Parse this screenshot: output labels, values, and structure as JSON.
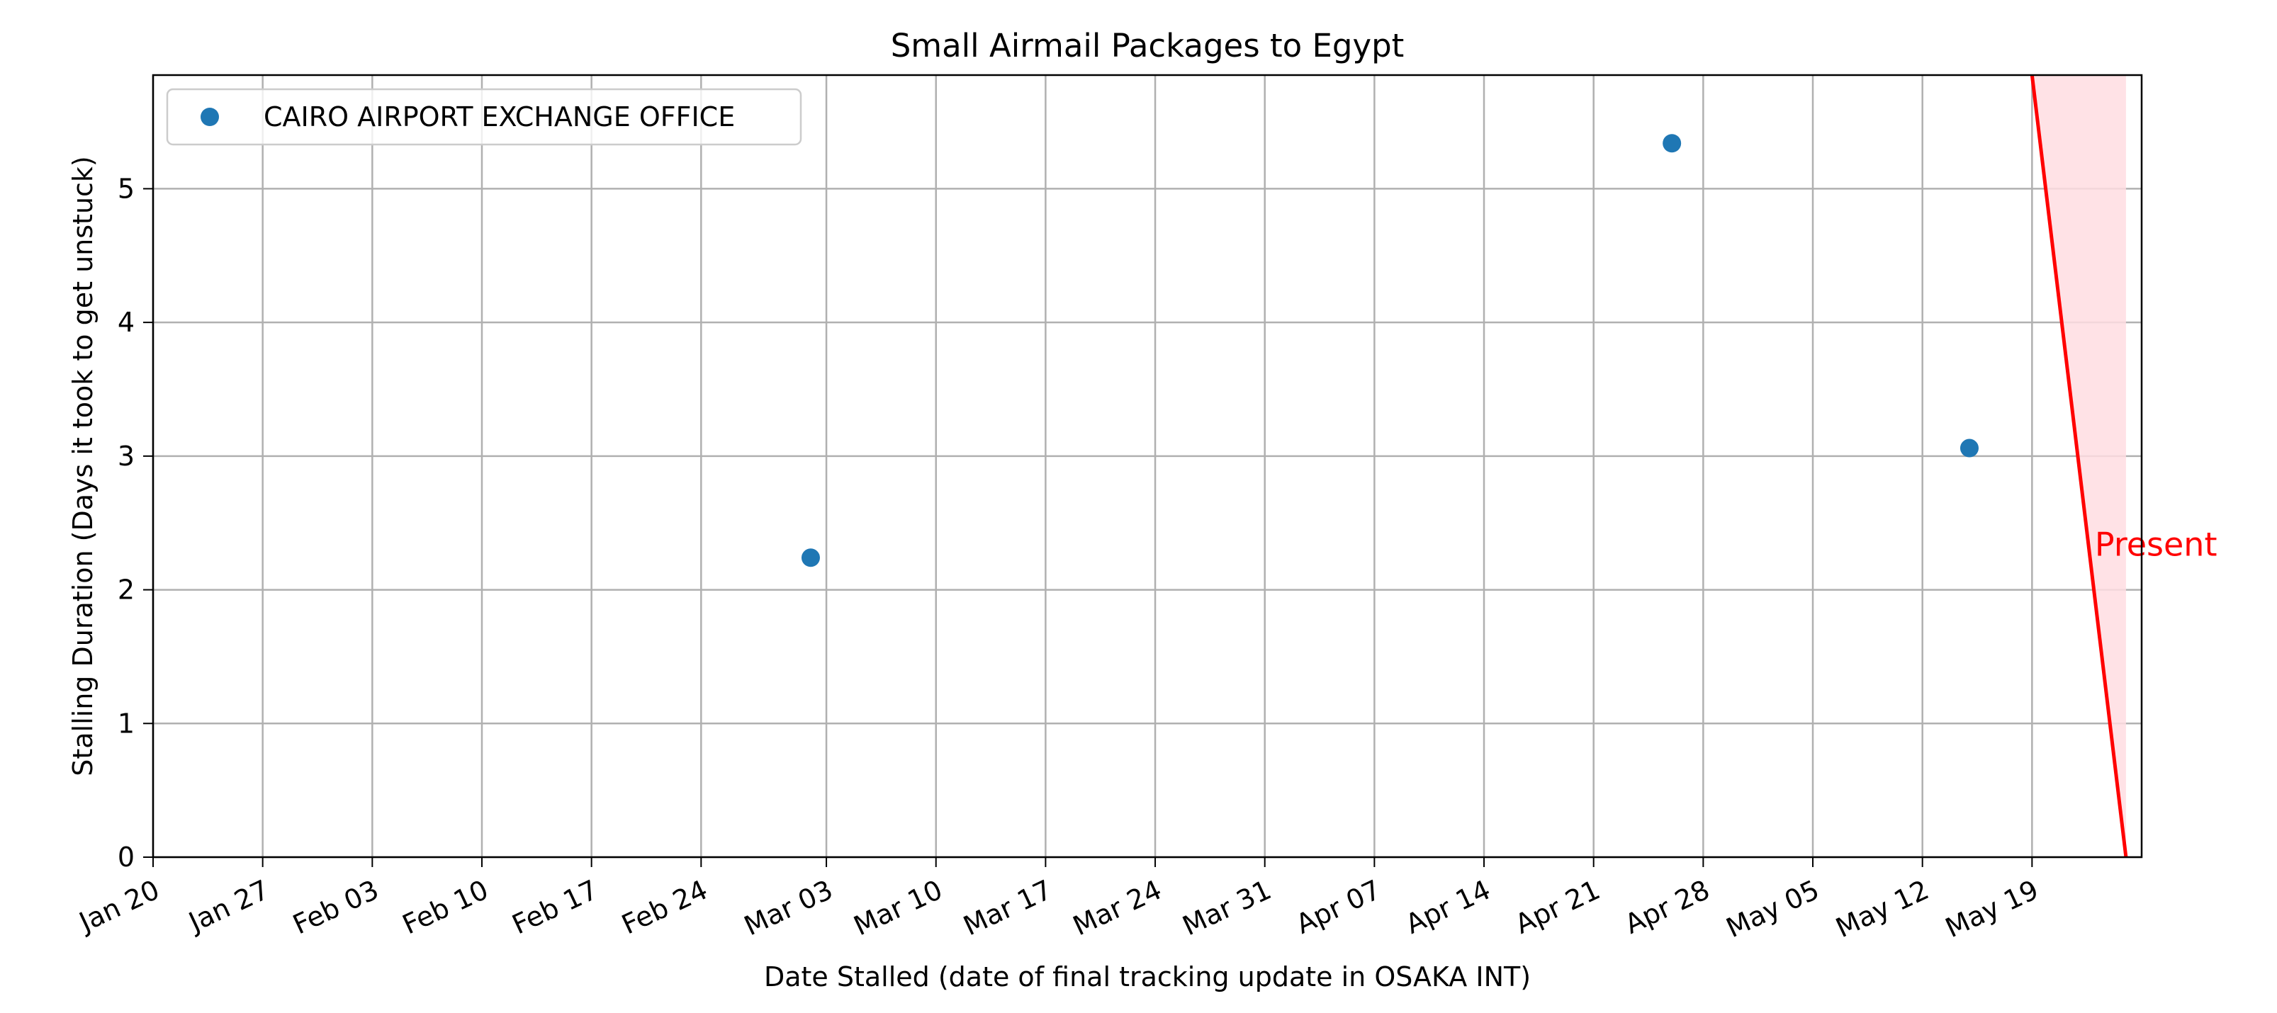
{
  "chart_data": {
    "type": "scatter",
    "title": "Small Airmail Packages to Egypt",
    "xlabel": "Date Stalled (date of final tracking update in OSAKA INT)",
    "ylabel": "Stalling Duration (Days it took to get unstuck)",
    "x_type": "date",
    "xlim": [
      "2024-01-20",
      "2024-05-26"
    ],
    "ylim": [
      0,
      5.85
    ],
    "x_ticks": [
      "2024-01-20",
      "2024-01-27",
      "2024-02-03",
      "2024-02-10",
      "2024-02-17",
      "2024-02-24",
      "2024-03-03",
      "2024-03-10",
      "2024-03-17",
      "2024-03-24",
      "2024-03-31",
      "2024-04-07",
      "2024-04-14",
      "2024-04-21",
      "2024-04-28",
      "2024-05-05",
      "2024-05-12",
      "2024-05-19"
    ],
    "x_tick_labels": [
      "Jan 20",
      "Jan 27",
      "Feb 03",
      "Feb 10",
      "Feb 17",
      "Feb 24",
      "Mar 03",
      "Mar 10",
      "Mar 17",
      "Mar 24",
      "Mar 31",
      "Apr 07",
      "Apr 14",
      "Apr 21",
      "Apr 28",
      "May 05",
      "May 12",
      "May 19"
    ],
    "y_ticks": [
      0,
      1,
      2,
      3,
      4,
      5
    ],
    "y_tick_labels": [
      "0",
      "1",
      "2",
      "3",
      "4",
      "5"
    ],
    "grid": true,
    "legend_position": "top-left",
    "series": [
      {
        "name": "CAIRO AIRPORT EXCHANGE OFFICE",
        "color": "#1f77b4",
        "points": [
          {
            "x": "2024-03-02",
            "y": 2.24
          },
          {
            "x": "2024-04-26",
            "y": 5.34
          },
          {
            "x": "2024-05-15",
            "y": 3.06
          }
        ]
      }
    ],
    "present_line": {
      "label": "Present",
      "color": "#ff0000",
      "fill_color": "#ffdde2",
      "top": {
        "x": "2024-05-19",
        "y": 5.85
      },
      "bottom": {
        "x": "2024-05-25",
        "y": 0
      }
    }
  }
}
